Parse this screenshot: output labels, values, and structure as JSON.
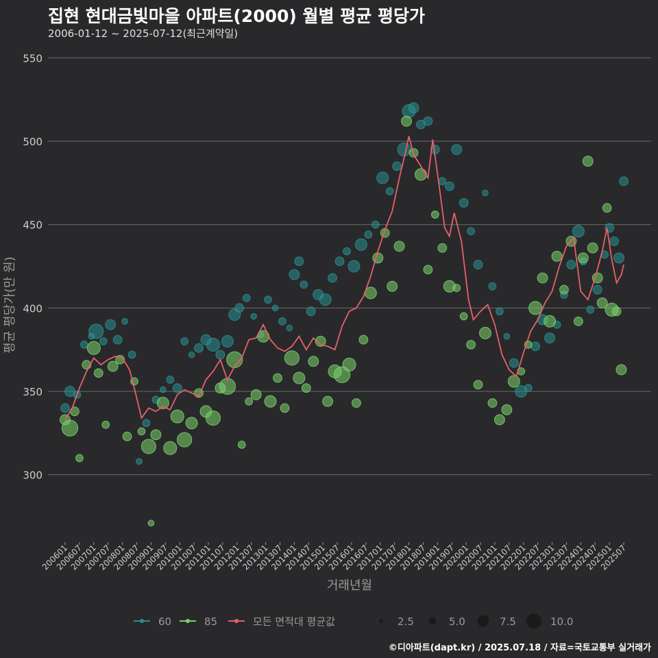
{
  "header": {
    "title": "집현 현대금빛마을 아파트(2000) 월별 평균 평당가",
    "subtitle": "2006-01-12 ~ 2025-07-12(최근계약일)"
  },
  "footer": {
    "credit": "©디아파트(dapt.kr) / 2025.07.18 / 자료=국토교통부 실거래가"
  },
  "colors": {
    "background": "#29292b",
    "grid": "#6b6b6b",
    "s60": "#2a8f8f",
    "s85": "#7bd36b",
    "avg": "#e8606a"
  },
  "chart_data": {
    "type": "scatter",
    "xlabel": "거래년월",
    "ylabel": "평균 평당가(만 원)",
    "ylim": [
      260,
      560
    ],
    "yticks": [
      300,
      350,
      400,
      450,
      500,
      550
    ],
    "xticks": [
      "200601",
      "200607",
      "200701",
      "200707",
      "200801",
      "200807",
      "200901",
      "200907",
      "201001",
      "201007",
      "201101",
      "201107",
      "201201",
      "201207",
      "201301",
      "201307",
      "201401",
      "201407",
      "201501",
      "201507",
      "201601",
      "201607",
      "201701",
      "201707",
      "201801",
      "201807",
      "201901",
      "201907",
      "202001",
      "202007",
      "202101",
      "202107",
      "202201",
      "202207",
      "202301",
      "202307",
      "202401",
      "202407",
      "202501",
      "202507"
    ],
    "legend": {
      "series": [
        "60",
        "85",
        "모든 면적대 평균값"
      ],
      "size_values": [
        "2.5",
        "5.0",
        "7.5",
        "10.0"
      ]
    },
    "avg_line": {
      "name": "모든 면적대 평균값",
      "points": [
        [
          "2006-01",
          333
        ],
        [
          "2006-04",
          340
        ],
        [
          "2006-07",
          352
        ],
        [
          "2006-10",
          362
        ],
        [
          "2007-01",
          370
        ],
        [
          "2007-04",
          366
        ],
        [
          "2007-07",
          369
        ],
        [
          "2007-10",
          371
        ],
        [
          "2008-01",
          370
        ],
        [
          "2008-04",
          363
        ],
        [
          "2008-07",
          346
        ],
        [
          "2008-09",
          334
        ],
        [
          "2008-12",
          340
        ],
        [
          "2009-03",
          338
        ],
        [
          "2009-06",
          341
        ],
        [
          "2009-09",
          339
        ],
        [
          "2009-12",
          348
        ],
        [
          "2010-03",
          351
        ],
        [
          "2010-06",
          349
        ],
        [
          "2010-09",
          347
        ],
        [
          "2010-12",
          357
        ],
        [
          "2011-03",
          362
        ],
        [
          "2011-06",
          369
        ],
        [
          "2011-09",
          357
        ],
        [
          "2011-12",
          365
        ],
        [
          "2012-03",
          370
        ],
        [
          "2012-06",
          381
        ],
        [
          "2012-09",
          382
        ],
        [
          "2012-12",
          390
        ],
        [
          "2013-03",
          381
        ],
        [
          "2013-06",
          376
        ],
        [
          "2013-09",
          374
        ],
        [
          "2013-12",
          377
        ],
        [
          "2014-03",
          383
        ],
        [
          "2014-06",
          375
        ],
        [
          "2014-09",
          382
        ],
        [
          "2014-12",
          378
        ],
        [
          "2015-03",
          377
        ],
        [
          "2015-06",
          375
        ],
        [
          "2015-09",
          389
        ],
        [
          "2015-12",
          398
        ],
        [
          "2016-03",
          400
        ],
        [
          "2016-06",
          407
        ],
        [
          "2016-09",
          419
        ],
        [
          "2016-12",
          434
        ],
        [
          "2017-03",
          447
        ],
        [
          "2017-06",
          458
        ],
        [
          "2017-09",
          478
        ],
        [
          "2017-12",
          496
        ],
        [
          "2018-01",
          503
        ],
        [
          "2018-03",
          492
        ],
        [
          "2018-06",
          485
        ],
        [
          "2018-09",
          478
        ],
        [
          "2018-11",
          501
        ],
        [
          "2019-02",
          470
        ],
        [
          "2019-04",
          448
        ],
        [
          "2019-06",
          443
        ],
        [
          "2019-08",
          457
        ],
        [
          "2019-11",
          440
        ],
        [
          "2020-02",
          405
        ],
        [
          "2020-04",
          393
        ],
        [
          "2020-07",
          398
        ],
        [
          "2020-10",
          402
        ],
        [
          "2021-01",
          390
        ],
        [
          "2021-04",
          372
        ],
        [
          "2021-07",
          363
        ],
        [
          "2021-10",
          359
        ],
        [
          "2022-01",
          373
        ],
        [
          "2022-04",
          386
        ],
        [
          "2022-07",
          393
        ],
        [
          "2022-10",
          403
        ],
        [
          "2023-01",
          410
        ],
        [
          "2023-04",
          425
        ],
        [
          "2023-07",
          437
        ],
        [
          "2023-10",
          442
        ],
        [
          "2024-01",
          410
        ],
        [
          "2024-04",
          405
        ],
        [
          "2024-07",
          418
        ],
        [
          "2024-10",
          434
        ],
        [
          "2024-12",
          448
        ],
        [
          "2025-02",
          429
        ],
        [
          "2025-04",
          415
        ],
        [
          "2025-06",
          420
        ],
        [
          "2025-07",
          426
        ]
      ]
    },
    "series": [
      {
        "name": "60",
        "points": [
          [
            "2006-01",
            340,
            4
          ],
          [
            "2006-03",
            350,
            5
          ],
          [
            "2006-06",
            348,
            3
          ],
          [
            "2006-09",
            378,
            3
          ],
          [
            "2006-12",
            383,
            2
          ],
          [
            "2007-02",
            386,
            8
          ],
          [
            "2007-05",
            380,
            3
          ],
          [
            "2007-08",
            390,
            5
          ],
          [
            "2007-11",
            381,
            4
          ],
          [
            "2008-02",
            392,
            2
          ],
          [
            "2008-05",
            372,
            3
          ],
          [
            "2008-08",
            308,
            2
          ],
          [
            "2008-11",
            331,
            3
          ],
          [
            "2009-03",
            345,
            3
          ],
          [
            "2009-06",
            351,
            2
          ],
          [
            "2009-09",
            357,
            3
          ],
          [
            "2009-12",
            352,
            4
          ],
          [
            "2010-03",
            380,
            3
          ],
          [
            "2010-06",
            372,
            2
          ],
          [
            "2010-09",
            376,
            4
          ],
          [
            "2010-12",
            381,
            5
          ],
          [
            "2011-03",
            378,
            7
          ],
          [
            "2011-06",
            372,
            4
          ],
          [
            "2011-09",
            380,
            6
          ],
          [
            "2011-12",
            396,
            6
          ],
          [
            "2012-02",
            400,
            4
          ],
          [
            "2012-05",
            406,
            3
          ],
          [
            "2012-08",
            395,
            2
          ],
          [
            "2012-11",
            384,
            2
          ],
          [
            "2013-02",
            405,
            3
          ],
          [
            "2013-05",
            400,
            2
          ],
          [
            "2013-08",
            392,
            3
          ],
          [
            "2013-11",
            388,
            2
          ],
          [
            "2014-01",
            420,
            5
          ],
          [
            "2014-03",
            428,
            4
          ],
          [
            "2014-05",
            414,
            3
          ],
          [
            "2014-08",
            398,
            4
          ],
          [
            "2014-11",
            408,
            5
          ],
          [
            "2015-02",
            405,
            6
          ],
          [
            "2015-05",
            418,
            4
          ],
          [
            "2015-08",
            428,
            4
          ],
          [
            "2015-11",
            434,
            3
          ],
          [
            "2016-02",
            425,
            6
          ],
          [
            "2016-05",
            438,
            6
          ],
          [
            "2016-08",
            444,
            3
          ],
          [
            "2016-11",
            450,
            3
          ],
          [
            "2017-02",
            478,
            6
          ],
          [
            "2017-05",
            470,
            3
          ],
          [
            "2017-08",
            485,
            4
          ],
          [
            "2017-11",
            495,
            7
          ],
          [
            "2018-01",
            518,
            7
          ],
          [
            "2018-03",
            520,
            5
          ],
          [
            "2018-06",
            510,
            4
          ],
          [
            "2018-09",
            512,
            4
          ],
          [
            "2018-12",
            495,
            4
          ],
          [
            "2019-03",
            476,
            3
          ],
          [
            "2019-06",
            473,
            4
          ],
          [
            "2019-09",
            495,
            5
          ],
          [
            "2019-12",
            463,
            4
          ],
          [
            "2020-03",
            446,
            3
          ],
          [
            "2020-06",
            426,
            4
          ],
          [
            "2020-09",
            469,
            2
          ],
          [
            "2020-12",
            413,
            3
          ],
          [
            "2021-03",
            398,
            3
          ],
          [
            "2021-06",
            383,
            2
          ],
          [
            "2021-09",
            367,
            4
          ],
          [
            "2021-12",
            350,
            6
          ],
          [
            "2022-03",
            352,
            3
          ],
          [
            "2022-06",
            377,
            4
          ],
          [
            "2022-09",
            393,
            5
          ],
          [
            "2022-12",
            382,
            5
          ],
          [
            "2023-03",
            390,
            3
          ],
          [
            "2023-06",
            408,
            3
          ],
          [
            "2023-09",
            426,
            4
          ],
          [
            "2023-12",
            446,
            6
          ],
          [
            "2024-02",
            428,
            3
          ],
          [
            "2024-05",
            399,
            3
          ],
          [
            "2024-08",
            411,
            4
          ],
          [
            "2024-11",
            432,
            3
          ],
          [
            "2025-01",
            448,
            4
          ],
          [
            "2025-03",
            440,
            4
          ],
          [
            "2025-05",
            430,
            5
          ],
          [
            "2025-07",
            476,
            4
          ]
        ]
      },
      {
        "name": "85",
        "points": [
          [
            "2006-01",
            333,
            5
          ],
          [
            "2006-03",
            328,
            9
          ],
          [
            "2006-05",
            338,
            4
          ],
          [
            "2006-07",
            310,
            3
          ],
          [
            "2006-10",
            366,
            4
          ],
          [
            "2007-01",
            376,
            7
          ],
          [
            "2007-03",
            361,
            4
          ],
          [
            "2007-06",
            330,
            3
          ],
          [
            "2007-09",
            365,
            5
          ],
          [
            "2007-12",
            369,
            4
          ],
          [
            "2008-03",
            323,
            4
          ],
          [
            "2008-06",
            356,
            3
          ],
          [
            "2008-09",
            326,
            3
          ],
          [
            "2008-12",
            317,
            8
          ],
          [
            "2009-03",
            324,
            5
          ],
          [
            "2009-06",
            343,
            6
          ],
          [
            "2009-09",
            316,
            7
          ],
          [
            "2009-12",
            335,
            7
          ],
          [
            "2010-03",
            321,
            8
          ],
          [
            "2010-06",
            331,
            6
          ],
          [
            "2010-09",
            349,
            4
          ],
          [
            "2010-12",
            338,
            6
          ],
          [
            "2011-03",
            334,
            8
          ],
          [
            "2011-06",
            352,
            5
          ],
          [
            "2011-09",
            353,
            9
          ],
          [
            "2011-12",
            369,
            9
          ],
          [
            "2012-03",
            318,
            3
          ],
          [
            "2012-06",
            344,
            3
          ],
          [
            "2012-09",
            348,
            5
          ],
          [
            "2012-12",
            383,
            6
          ],
          [
            "2013-03",
            344,
            6
          ],
          [
            "2013-06",
            358,
            4
          ],
          [
            "2013-09",
            340,
            4
          ],
          [
            "2013-12",
            370,
            8
          ],
          [
            "2014-03",
            358,
            6
          ],
          [
            "2014-06",
            352,
            4
          ],
          [
            "2014-09",
            368,
            5
          ],
          [
            "2014-12",
            380,
            5
          ],
          [
            "2015-03",
            344,
            5
          ],
          [
            "2015-06",
            362,
            7
          ],
          [
            "2015-09",
            360,
            9
          ],
          [
            "2015-12",
            366,
            7
          ],
          [
            "2016-03",
            343,
            4
          ],
          [
            "2016-06",
            381,
            4
          ],
          [
            "2016-09",
            409,
            6
          ],
          [
            "2016-12",
            430,
            5
          ],
          [
            "2017-03",
            445,
            4
          ],
          [
            "2017-06",
            413,
            5
          ],
          [
            "2017-09",
            437,
            5
          ],
          [
            "2017-12",
            512,
            5
          ],
          [
            "2018-03",
            493,
            4
          ],
          [
            "2018-06",
            480,
            6
          ],
          [
            "2018-09",
            423,
            4
          ],
          [
            "2018-12",
            456,
            3
          ],
          [
            "2019-03",
            436,
            4
          ],
          [
            "2019-06",
            413,
            6
          ],
          [
            "2019-09",
            412,
            3
          ],
          [
            "2019-12",
            395,
            3
          ],
          [
            "2020-03",
            378,
            4
          ],
          [
            "2020-06",
            354,
            4
          ],
          [
            "2020-09",
            385,
            6
          ],
          [
            "2020-12",
            343,
            4
          ],
          [
            "2021-03",
            333,
            5
          ],
          [
            "2021-06",
            339,
            5
          ],
          [
            "2021-09",
            356,
            6
          ],
          [
            "2021-12",
            362,
            3
          ],
          [
            "2022-03",
            378,
            3
          ],
          [
            "2022-06",
            400,
            7
          ],
          [
            "2022-09",
            418,
            5
          ],
          [
            "2022-12",
            392,
            6
          ],
          [
            "2023-03",
            431,
            5
          ],
          [
            "2023-06",
            411,
            4
          ],
          [
            "2023-09",
            440,
            5
          ],
          [
            "2023-12",
            392,
            4
          ],
          [
            "2024-02",
            430,
            5
          ],
          [
            "2024-04",
            488,
            5
          ],
          [
            "2024-06",
            436,
            5
          ],
          [
            "2024-08",
            418,
            5
          ],
          [
            "2024-10",
            403,
            5
          ],
          [
            "2024-12",
            460,
            4
          ],
          [
            "2025-02",
            399,
            7
          ],
          [
            "2025-04",
            398,
            4
          ],
          [
            "2025-06",
            363,
            5
          ],
          [
            "2009-01",
            271,
            2
          ]
        ]
      }
    ]
  }
}
